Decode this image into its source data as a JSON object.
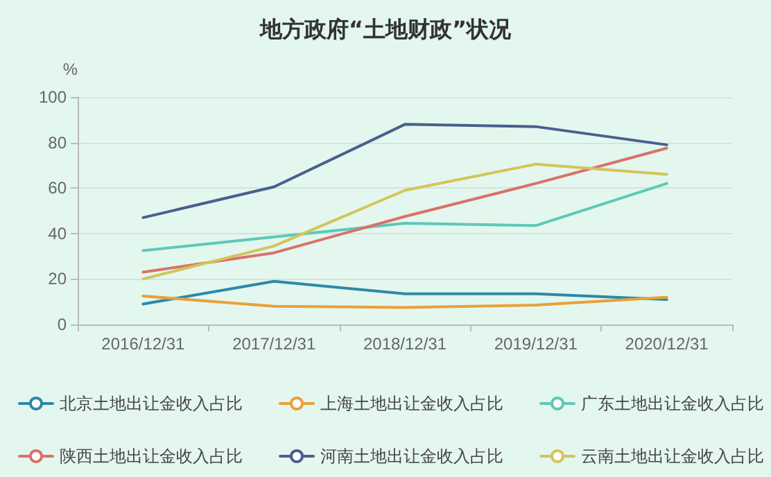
{
  "chart_data": {
    "type": "line",
    "title": "地方政府“土地财政”状况",
    "ylabel": "%",
    "categories": [
      "2016/12/31",
      "2017/12/31",
      "2018/12/31",
      "2019/12/31",
      "2020/12/31"
    ],
    "series": [
      {
        "name": "北京土地出让金收入占比",
        "color": "#2e88a8",
        "values": [
          9,
          19,
          13.5,
          13.5,
          11
        ]
      },
      {
        "name": "上海土地出让金收入占比",
        "color": "#e8a13a",
        "values": [
          12.5,
          8,
          7.5,
          8.5,
          12
        ]
      },
      {
        "name": "广东土地出让金收入占比",
        "color": "#5ec8b8",
        "values": [
          32.5,
          38.5,
          44.5,
          43.5,
          62
        ]
      },
      {
        "name": "陕西土地出让金收入占比",
        "color": "#d9726a",
        "values": [
          23,
          31.5,
          47.5,
          62,
          77.5
        ]
      },
      {
        "name": "河南土地出让金收入占比",
        "color": "#4a5f8e",
        "values": [
          47,
          60.5,
          88,
          87,
          79
        ]
      },
      {
        "name": "云南土地出让金收入占比",
        "color": "#d4c45a",
        "values": [
          20,
          34.5,
          59,
          70.5,
          66
        ]
      }
    ],
    "ylim": [
      0,
      100
    ],
    "yticks": [
      0,
      20,
      40,
      60,
      80,
      100
    ],
    "grid": "y",
    "legend": "bottom",
    "marker": "none",
    "line_style": "solid"
  }
}
